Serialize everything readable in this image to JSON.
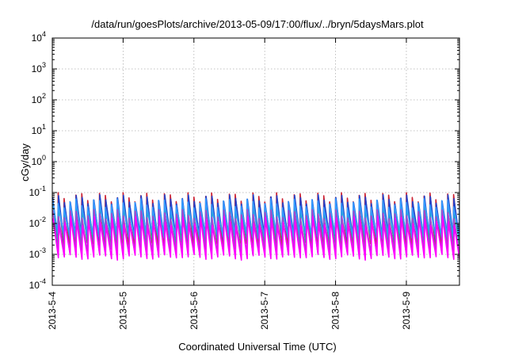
{
  "chart_data": {
    "type": "line",
    "title": "/data/run/goesPlots/archive/2013-05-09/17:00/flux/../bryn/5daysMars.plot",
    "xlabel": "Coordinated Universal Time (UTC)",
    "ylabel": "cGy/day",
    "yscale": "log",
    "ylim": [
      0.0001,
      10000
    ],
    "xlim": [
      "2013-05-04 00:00",
      "2013-05-09 18:00"
    ],
    "x_ticks": [
      "2013-5-4",
      "2013-5-5",
      "2013-5-6",
      "2013-5-7",
      "2013-5-8",
      "2013-5-9"
    ],
    "y_ticks": [
      {
        "base": "10",
        "exp": "-4",
        "value": 0.0001
      },
      {
        "base": "10",
        "exp": "-3",
        "value": 0.001
      },
      {
        "base": "10",
        "exp": "-2",
        "value": 0.01
      },
      {
        "base": "10",
        "exp": "-1",
        "value": 0.1
      },
      {
        "base": "10",
        "exp": "0",
        "value": 1
      },
      {
        "base": "10",
        "exp": "1",
        "value": 10
      },
      {
        "base": "10",
        "exp": "2",
        "value": 100
      },
      {
        "base": "10",
        "exp": "3",
        "value": 1000
      },
      {
        "base": "10",
        "exp": "4",
        "value": 10000
      }
    ],
    "grid": true,
    "legend": "none",
    "pattern": "sawtooth, about 12 cycles per day",
    "series": [
      {
        "color": "#cc2233",
        "peak": 0.07,
        "trough": 0.0025
      },
      {
        "color": "#2244cc",
        "peak": 0.06,
        "trough": 0.004
      },
      {
        "color": "#22aaaa",
        "peak": 0.03,
        "trough": 0.003
      },
      {
        "color": "#3399ff",
        "peak": 0.045,
        "trough": 0.005
      },
      {
        "color": "#aa44cc",
        "peak": 0.02,
        "trough": 0.0015
      },
      {
        "color": "#ff00ff",
        "peak": 0.012,
        "trough": 0.001
      }
    ]
  }
}
